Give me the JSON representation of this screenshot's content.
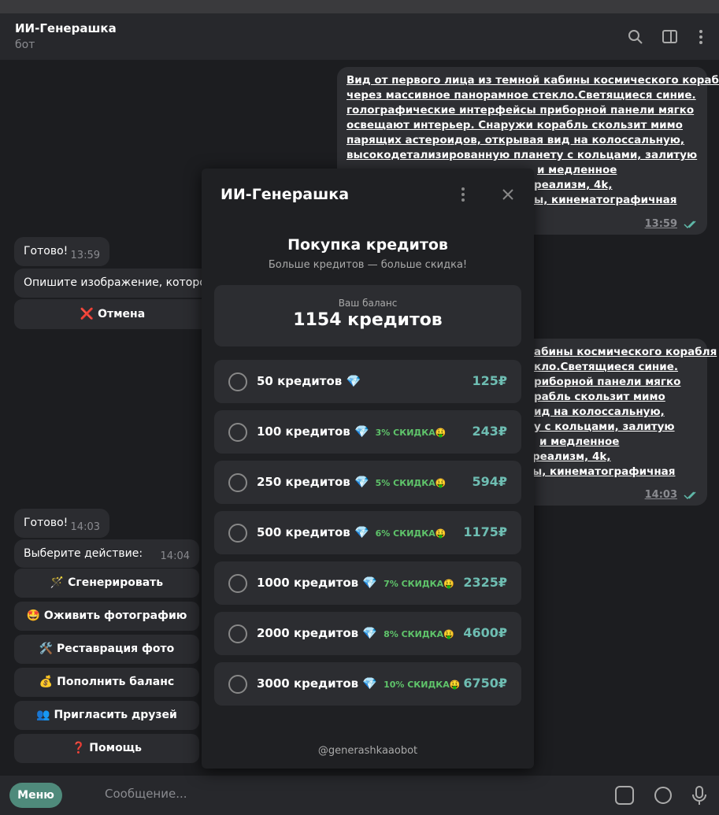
{
  "header": {
    "title": "ИИ-Генерашка",
    "subtitle": "бот"
  },
  "outgoing": [
    {
      "lines": [
        "Вид от первого лица из темной кабины космического корабля",
        "через массивное панорамное стекло.Светящиеся синие.",
        "голографические интерфейсы приборной панели мягко",
        "освещают интерьер. Снаружи корабль скользит мимо",
        "парящих астероидов, открывая вид на колоссальную,",
        "высокодетализированную планету с кольцами, залитую",
        "и медленное",
        "реализм, 4k,",
        "ы, кинематографичная"
      ],
      "time": "13:59"
    },
    {
      "lines": [
        "абины космического корабля",
        "кло.Светящиеся синие.",
        "риборной панели мягко",
        "рабль скользит мимо",
        "ид на колоссальную,",
        "у с кольцами, залитую",
        "и медленное",
        "реализм, 4k,",
        "ы, кинематографичная"
      ],
      "time": "14:03"
    }
  ],
  "incoming": [
    {
      "text": "Готово!",
      "time": "13:59"
    },
    {
      "text": "Опишите изображение, которое"
    },
    {
      "button": "❌ Отмена"
    },
    {
      "text": "Готово!",
      "time": "14:03"
    },
    {
      "text": "Выберите действие:",
      "time": "14:04"
    }
  ],
  "buttons": [
    "🪄 Сгенерировать",
    "🤩 Оживить фотографию",
    "🛠️ Реставрация фото",
    "💰 Пополнить баланс",
    "👥 Пригласить друзей",
    "❓ Помощь"
  ],
  "input": {
    "menu": "Меню",
    "placeholder": "Сообщение..."
  },
  "modal": {
    "title": "ИИ-Генерашка",
    "heading": "Покупка кредитов",
    "subheading": "Больше кредитов — больше скидка!",
    "balance_label": "Ваш баланс",
    "balance": "1154 кредитов",
    "footer": "@generashkaaobot",
    "options": [
      {
        "label": "50 кредитов 💎",
        "price": "125₽"
      },
      {
        "label": "100 кредитов 💎",
        "discount": "3% СКИДКА🤑",
        "price": "243₽"
      },
      {
        "label": "250 кредитов 💎",
        "discount": "5% СКИДКА🤑",
        "price": "594₽"
      },
      {
        "label": "500 кредитов 💎",
        "discount": "6% СКИДКА🤑",
        "price": "1175₽"
      },
      {
        "label": "1000 кредитов 💎",
        "discount": "7% СКИДКА🤑",
        "price": "2325₽"
      },
      {
        "label": "2000 кредитов 💎",
        "discount": "8% СКИДКА🤑",
        "price": "4600₽"
      },
      {
        "label": "3000 кредитов 💎",
        "discount": "10% СКИДКА🤑",
        "price": "6750₽"
      }
    ]
  }
}
